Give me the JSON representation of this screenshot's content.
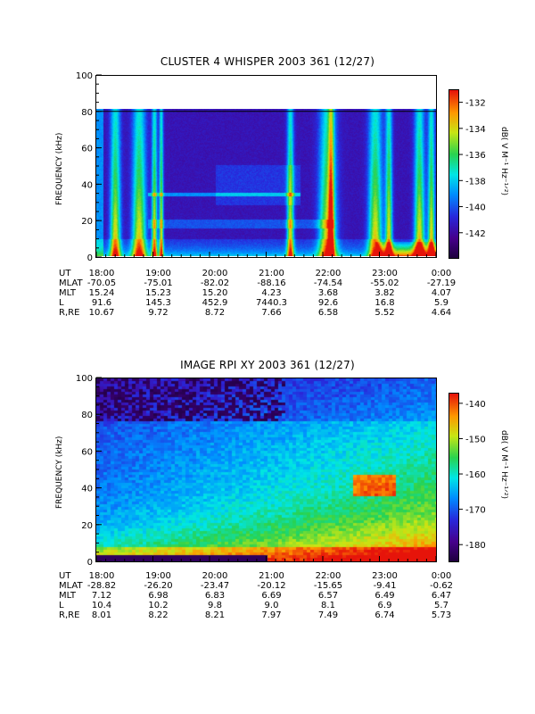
{
  "chart_data": [
    {
      "type": "heatmap",
      "title": "CLUSTER 4 WHISPER 2003 361 (12/27)",
      "ylabel": "FREQUENCY (kHz)",
      "ylim": [
        0,
        100
      ],
      "yticks": [
        "100",
        "80",
        "60",
        "40",
        "20",
        "0"
      ],
      "x": [
        "18:00",
        "19:00",
        "20:00",
        "21:00",
        "22:00",
        "23:00",
        "0:00"
      ],
      "colorbar": {
        "label": "dB( V M⁻¹ Hz⁻¹ᐟ²)",
        "range": [
          -144,
          -131
        ],
        "ticks": [
          "-132",
          "-134",
          "-136",
          "-138",
          "-140",
          "-142"
        ]
      },
      "data_ymax": 80,
      "ephemeris": [
        {
          "label": "UT",
          "values": [
            "18:00",
            "19:00",
            "20:00",
            "21:00",
            "22:00",
            "23:00",
            "0:00"
          ]
        },
        {
          "label": "MLAT",
          "values": [
            "-70.05",
            "-75.01",
            "-82.02",
            "-88.16",
            "-74.54",
            "-55.02",
            "-27.19"
          ]
        },
        {
          "label": "MLT",
          "values": [
            "15.24",
            "15.23",
            "15.20",
            "4.23",
            "3.68",
            "3.82",
            "4.07"
          ]
        },
        {
          "label": "L",
          "values": [
            "91.6",
            "145.3",
            "452.9",
            "7440.3",
            "92.6",
            "16.8",
            "5.9"
          ]
        },
        {
          "label": "R,RE",
          "values": [
            "10.67",
            "9.72",
            "8.72",
            "7.66",
            "6.58",
            "5.52",
            "4.64"
          ]
        }
      ]
    },
    {
      "type": "heatmap",
      "title": "IMAGE RPI XY 2003 361 (12/27)",
      "ylabel": "FREQUENCY (kHz)",
      "ylim": [
        0,
        100
      ],
      "yticks": [
        "100",
        "80",
        "60",
        "40",
        "20",
        "0"
      ],
      "x": [
        "18:00",
        "19:00",
        "20:00",
        "21:00",
        "22:00",
        "23:00",
        "0:00"
      ],
      "colorbar": {
        "label": "dB( V M⁻¹ Hz⁻¹ᐟ²)",
        "range": [
          -185,
          -137
        ],
        "ticks": [
          "-140",
          "-150",
          "-160",
          "-170",
          "-180"
        ]
      },
      "ephemeris": [
        {
          "label": "UT",
          "values": [
            "18:00",
            "19:00",
            "20:00",
            "21:00",
            "22:00",
            "23:00",
            "0:00"
          ]
        },
        {
          "label": "MLAT",
          "values": [
            "-28.82",
            "-26.20",
            "-23.47",
            "-20.12",
            "-15.65",
            "-9.41",
            "-0.62"
          ]
        },
        {
          "label": "MLT",
          "values": [
            "7.12",
            "6.98",
            "6.83",
            "6.69",
            "6.57",
            "6.49",
            "6.47"
          ]
        },
        {
          "label": "L",
          "values": [
            "10.4",
            "10.2",
            "9.8",
            "9.0",
            "8.1",
            "6.9",
            "5.7"
          ]
        },
        {
          "label": "R,RE",
          "values": [
            "8.01",
            "8.22",
            "8.21",
            "7.97",
            "7.49",
            "6.74",
            "5.73"
          ]
        }
      ]
    }
  ]
}
